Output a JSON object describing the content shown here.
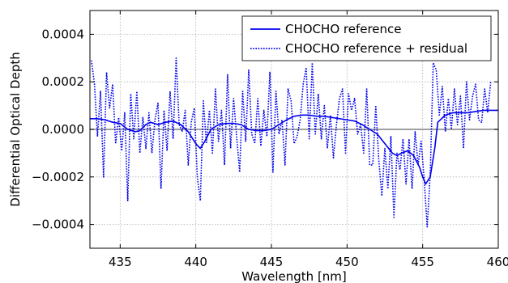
{
  "chart_data": {
    "type": "line",
    "title": "",
    "xlabel": "Wavelength [nm]",
    "ylabel": "Differential Optical Depth",
    "xlim": [
      433.0,
      460.0
    ],
    "ylim": [
      -0.0005,
      0.0005
    ],
    "x_ticks": [
      435,
      440,
      445,
      450,
      455,
      460
    ],
    "x_tick_labels": [
      "435",
      "440",
      "445",
      "450",
      "455",
      "460"
    ],
    "y_ticks": [
      -0.0004,
      -0.0002,
      0.0,
      0.0002,
      0.0004
    ],
    "y_tick_labels": [
      "−0.0004",
      "−0.0002",
      "0.0000",
      "0.0002",
      "0.0004"
    ],
    "grid": true,
    "zero_line": true,
    "legend_position": "top-right",
    "colors": {
      "series": "#0000ee",
      "zero_line": "#808080",
      "grid": "#b0b0b0"
    },
    "series": [
      {
        "name": "CHOCHO reference",
        "style": "solid",
        "x": [
          433.0,
          433.5,
          434.0,
          434.5,
          435.0,
          435.5,
          436.0,
          436.3,
          436.7,
          437.0,
          437.5,
          438.0,
          438.5,
          439.0,
          439.5,
          440.0,
          440.3,
          440.6,
          441.0,
          441.5,
          442.0,
          442.5,
          443.0,
          443.5,
          444.0,
          444.5,
          445.0,
          445.5,
          446.0,
          446.5,
          447.0,
          447.5,
          448.0,
          448.5,
          449.0,
          449.5,
          450.0,
          450.5,
          451.0,
          451.5,
          452.0,
          452.5,
          453.0,
          453.3,
          453.6,
          454.0,
          454.4,
          454.8,
          455.0,
          455.2,
          455.5,
          455.8,
          456.0,
          456.5,
          457.0,
          457.5,
          458.0,
          458.5,
          459.0,
          459.5,
          460.0
        ],
        "y": [
          4.5e-05,
          4.5e-05,
          4e-05,
          3e-05,
          2.5e-05,
          0.0,
          -1e-05,
          -5e-06,
          2e-05,
          3e-05,
          2e-05,
          3e-05,
          3.5e-05,
          2e-05,
          -1e-05,
          -6e-05,
          -8e-05,
          -5e-05,
          0.0,
          2e-05,
          2.5e-05,
          2.5e-05,
          2e-05,
          0.0,
          -5e-06,
          -5e-06,
          0.0,
          2e-05,
          4e-05,
          5.5e-05,
          6e-05,
          6e-05,
          5.5e-05,
          5.5e-05,
          5e-05,
          4.5e-05,
          4e-05,
          3.5e-05,
          2e-05,
          0.0,
          -2e-05,
          -6e-05,
          -0.0001,
          -0.00011,
          -0.0001,
          -9e-05,
          -0.00011,
          -0.00016,
          -0.0002,
          -0.00023,
          -0.0002,
          -8e-05,
          3e-05,
          6e-05,
          7e-05,
          7e-05,
          7e-05,
          7.5e-05,
          8e-05,
          8e-05,
          8e-05
        ]
      },
      {
        "name": "CHOCHO reference + residual",
        "style": "dotted",
        "x": [
          433.1,
          433.3,
          433.5,
          433.7,
          433.9,
          434.1,
          434.3,
          434.5,
          434.7,
          434.9,
          435.1,
          435.3,
          435.5,
          435.7,
          435.9,
          436.1,
          436.3,
          436.5,
          436.7,
          436.9,
          437.1,
          437.3,
          437.5,
          437.7,
          437.9,
          438.1,
          438.3,
          438.5,
          438.7,
          438.9,
          439.1,
          439.3,
          439.5,
          439.7,
          439.9,
          440.1,
          440.3,
          440.5,
          440.7,
          440.9,
          441.1,
          441.3,
          441.5,
          441.7,
          441.9,
          442.1,
          442.3,
          442.5,
          442.7,
          442.9,
          443.1,
          443.3,
          443.5,
          443.7,
          443.9,
          444.1,
          444.3,
          444.5,
          444.7,
          444.9,
          445.1,
          445.3,
          445.5,
          445.7,
          445.9,
          446.1,
          446.3,
          446.5,
          446.7,
          446.9,
          447.1,
          447.3,
          447.5,
          447.7,
          447.9,
          448.1,
          448.3,
          448.5,
          448.7,
          448.9,
          449.1,
          449.3,
          449.5,
          449.7,
          449.9,
          450.1,
          450.3,
          450.5,
          450.7,
          450.9,
          451.1,
          451.3,
          451.5,
          451.7,
          451.9,
          452.1,
          452.3,
          452.5,
          452.7,
          452.9,
          453.1,
          453.3,
          453.5,
          453.7,
          453.9,
          454.1,
          454.3,
          454.5,
          454.7,
          454.9,
          455.1,
          455.3,
          455.5,
          455.7,
          455.9,
          456.1,
          456.3,
          456.5,
          456.7,
          456.9,
          457.1,
          457.3,
          457.5,
          457.7,
          457.9,
          458.1,
          458.3,
          458.5,
          458.7,
          458.9,
          459.1,
          459.3,
          459.5
        ],
        "y": [
          0.00029,
          0.00019,
          -3e-05,
          0.00016,
          -0.0002,
          0.00024,
          9e-05,
          0.00019,
          -6e-05,
          5e-05,
          -9e-05,
          7e-05,
          -0.0003,
          0.00015,
          -4e-05,
          0.00016,
          -0.0001,
          5e-05,
          -8e-05,
          7e-05,
          -0.0001,
          4e-05,
          0.00011,
          -0.00025,
          8e-05,
          -9e-05,
          0.00016,
          -4e-05,
          0.0003,
          2e-05,
          -1e-05,
          8e-05,
          -0.00015,
          3e-05,
          9e-05,
          -0.0002,
          -0.0003,
          0.00012,
          -6e-05,
          8e-05,
          -0.0001,
          0.00017,
          -5e-05,
          8e-05,
          -0.00015,
          0.00023,
          -8e-05,
          0.00013,
          -3e-05,
          -0.00018,
          0.00016,
          -5e-05,
          0.00025,
          -2e-05,
          -6e-05,
          0.00013,
          -7e-05,
          8e-05,
          -3e-05,
          0.00024,
          -0.00018,
          0.00016,
          -2e-05,
          4e-05,
          -0.00015,
          0.00017,
          0.00012,
          -6e-05,
          -3e-05,
          4e-05,
          0.00019,
          0.00026,
          -4e-05,
          0.00028,
          -2e-05,
          0.00015,
          -4e-05,
          0.0001,
          -8e-05,
          6e-05,
          -0.00012,
          2e-05,
          0.00013,
          0.00017,
          -0.0001,
          0.00015,
          8e-05,
          0.00013,
          -2e-05,
          2e-05,
          -0.0001,
          0.00017,
          -0.00015,
          -0.00015,
          0.0001,
          -0.00013,
          -0.00028,
          -8e-05,
          -0.00025,
          -3e-05,
          -0.00037,
          -0.0001,
          -0.00017,
          -4e-05,
          -0.00023,
          -4e-05,
          -0.00025,
          -1e-05,
          -0.00015,
          -5e-05,
          -0.00021,
          -0.00041,
          -0.00019,
          0.00028,
          0.00025,
          6e-05,
          0.00018,
          -1e-05,
          0.00013,
          0.0,
          0.00017,
          2e-05,
          0.00014,
          -8e-05,
          0.0002,
          4e-05,
          0.00014,
          0.00019,
          4e-05,
          3e-05,
          0.00017,
          7e-05,
          0.0002
        ]
      }
    ]
  }
}
